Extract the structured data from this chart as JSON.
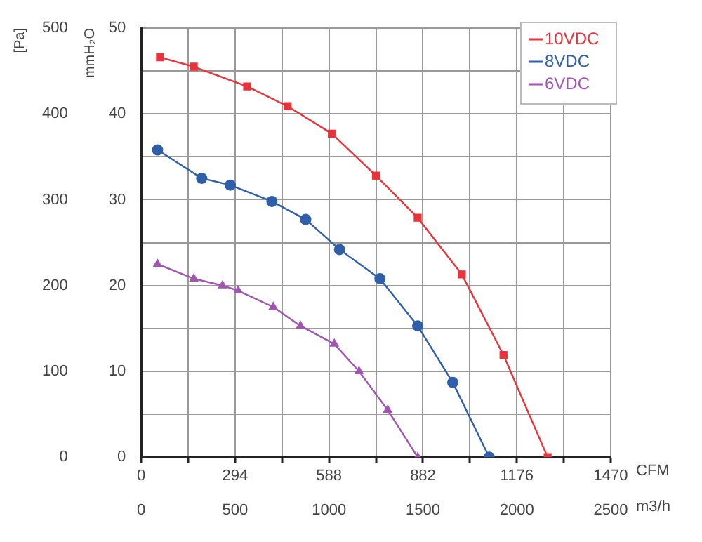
{
  "chart_data": {
    "type": "line",
    "ylabel": "[Pa]",
    "y2label": "mmH₂O",
    "xlabel": "m3/h",
    "x2label": "CFM",
    "xlim": [
      0,
      2500
    ],
    "xticks": [
      0,
      {
        "value": 250,
        "label": null
      },
      500,
      {
        "value": 750,
        "label": null
      },
      1000,
      {
        "value": 1250,
        "label": null
      },
      1500,
      {
        "value": 1750,
        "label": null
      },
      2000,
      {
        "value": 2250,
        "label": null
      },
      2500
    ],
    "x2lim": [
      0,
      1470
    ],
    "x2ticks": [
      0,
      {
        "value": 147,
        "label": null
      },
      294,
      {
        "value": 441,
        "label": null
      },
      588,
      {
        "value": 735,
        "label": null
      },
      882,
      {
        "value": 1029,
        "label": null
      },
      1176,
      {
        "value": 1323,
        "label": null
      },
      1470
    ],
    "ylim": [
      0,
      500
    ],
    "yticks": [
      0,
      {
        "value": 50,
        "label": null
      },
      100,
      {
        "value": 150,
        "label": null
      },
      200,
      {
        "value": 250,
        "label": null
      },
      300,
      {
        "value": 350,
        "label": null
      },
      400,
      {
        "value": 450,
        "label": null
      },
      500
    ],
    "y2lim": [
      0,
      50
    ],
    "y2ticks": [
      0,
      10,
      20,
      30,
      40,
      50
    ],
    "grid": true,
    "legend": "top right",
    "line_style": "solid",
    "series": [
      {
        "name": "10VDC",
        "color": "#e8333a",
        "marker": "square",
        "x": [
          100,
          280,
          564,
          779,
          1015,
          1250,
          1472,
          1707,
          1929,
          2164
        ],
        "values": [
          466,
          455,
          432,
          409,
          377,
          328,
          279,
          213,
          119,
          0
        ]
      },
      {
        "name": "8VDC",
        "color": "#2e5fa8",
        "marker": "circle",
        "x": [
          87,
          322,
          474,
          696,
          876,
          1056,
          1271,
          1472,
          1659,
          1853
        ],
        "values": [
          358,
          325,
          317,
          298,
          277,
          242,
          208,
          153,
          87,
          0
        ]
      },
      {
        "name": "6VDC",
        "color": "#a055b0",
        "marker": "triangle",
        "x": [
          87,
          280,
          433,
          516,
          703,
          848,
          1028,
          1160,
          1312,
          1472
        ],
        "values": [
          225,
          208,
          200,
          194,
          175,
          153,
          132,
          100,
          55,
          0
        ]
      }
    ]
  }
}
